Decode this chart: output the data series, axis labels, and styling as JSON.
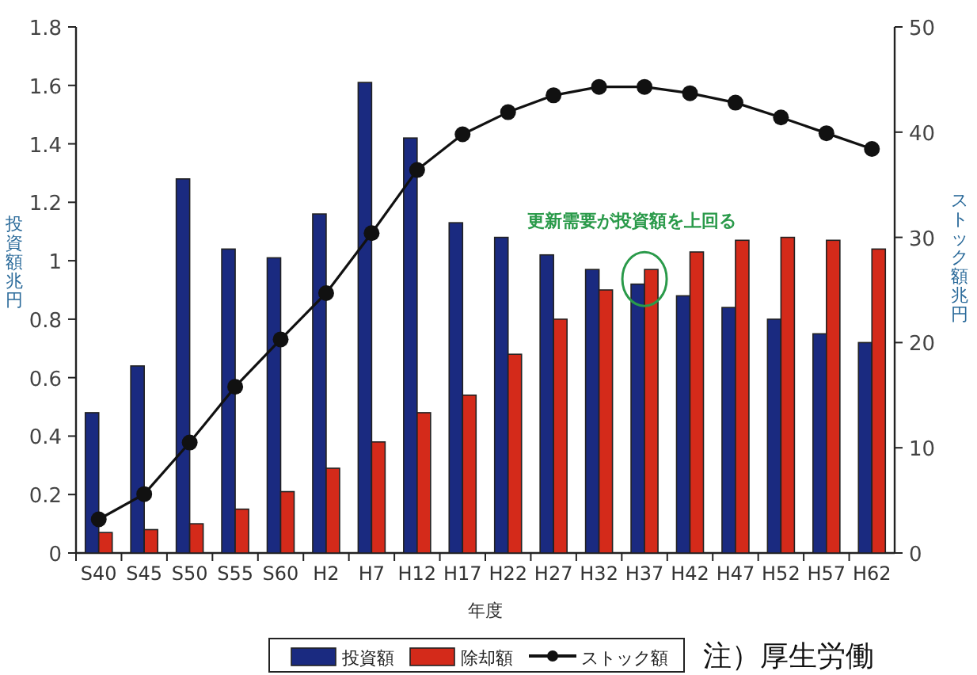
{
  "chart_data": {
    "type": "bar",
    "xlabel": "年度",
    "ylabel": "投資額兆円",
    "y2label": "ストック額兆円",
    "categories": [
      "S40",
      "S45",
      "S50",
      "S55",
      "S60",
      "H2",
      "H7",
      "H12",
      "H17",
      "H22",
      "H27",
      "H32",
      "H37",
      "H42",
      "H47",
      "H52",
      "H57",
      "H62"
    ],
    "series": [
      {
        "name": "投資額",
        "color": "#1a2a80",
        "values": [
          0.48,
          0.64,
          1.28,
          1.04,
          1.01,
          1.16,
          1.61,
          1.42,
          1.13,
          1.08,
          1.02,
          0.97,
          0.92,
          0.88,
          0.84,
          0.8,
          0.75,
          0.72
        ]
      },
      {
        "name": "除却額",
        "color": "#d42a1a",
        "values": [
          0.07,
          0.08,
          0.1,
          0.15,
          0.21,
          0.29,
          0.38,
          0.48,
          0.54,
          0.68,
          0.8,
          0.9,
          0.97,
          1.03,
          1.07,
          1.08,
          1.07,
          1.04
        ]
      },
      {
        "name": "ストック額",
        "type": "line",
        "axis": "y2",
        "color": "#111111",
        "marker": "circle",
        "values": [
          3.2,
          5.6,
          10.5,
          15.8,
          20.3,
          24.7,
          30.4,
          36.4,
          39.8,
          41.9,
          43.5,
          44.3,
          44.3,
          43.7,
          42.8,
          41.4,
          39.9,
          38.4
        ]
      }
    ],
    "ylim": [
      0,
      1.8
    ],
    "yticks": [
      0,
      0.2,
      0.4,
      0.6,
      0.8,
      1,
      1.2,
      1.4,
      1.6,
      1.8
    ],
    "y2lim": [
      0,
      50
    ],
    "y2ticks": [
      0,
      10,
      20,
      30,
      40,
      50
    ],
    "grid": false,
    "legend": "bottom",
    "annotations": [
      {
        "text": "更新需要が投資額を上回る",
        "x": "H37",
        "y": 0.97
      },
      "注）厚生労働"
    ]
  }
}
